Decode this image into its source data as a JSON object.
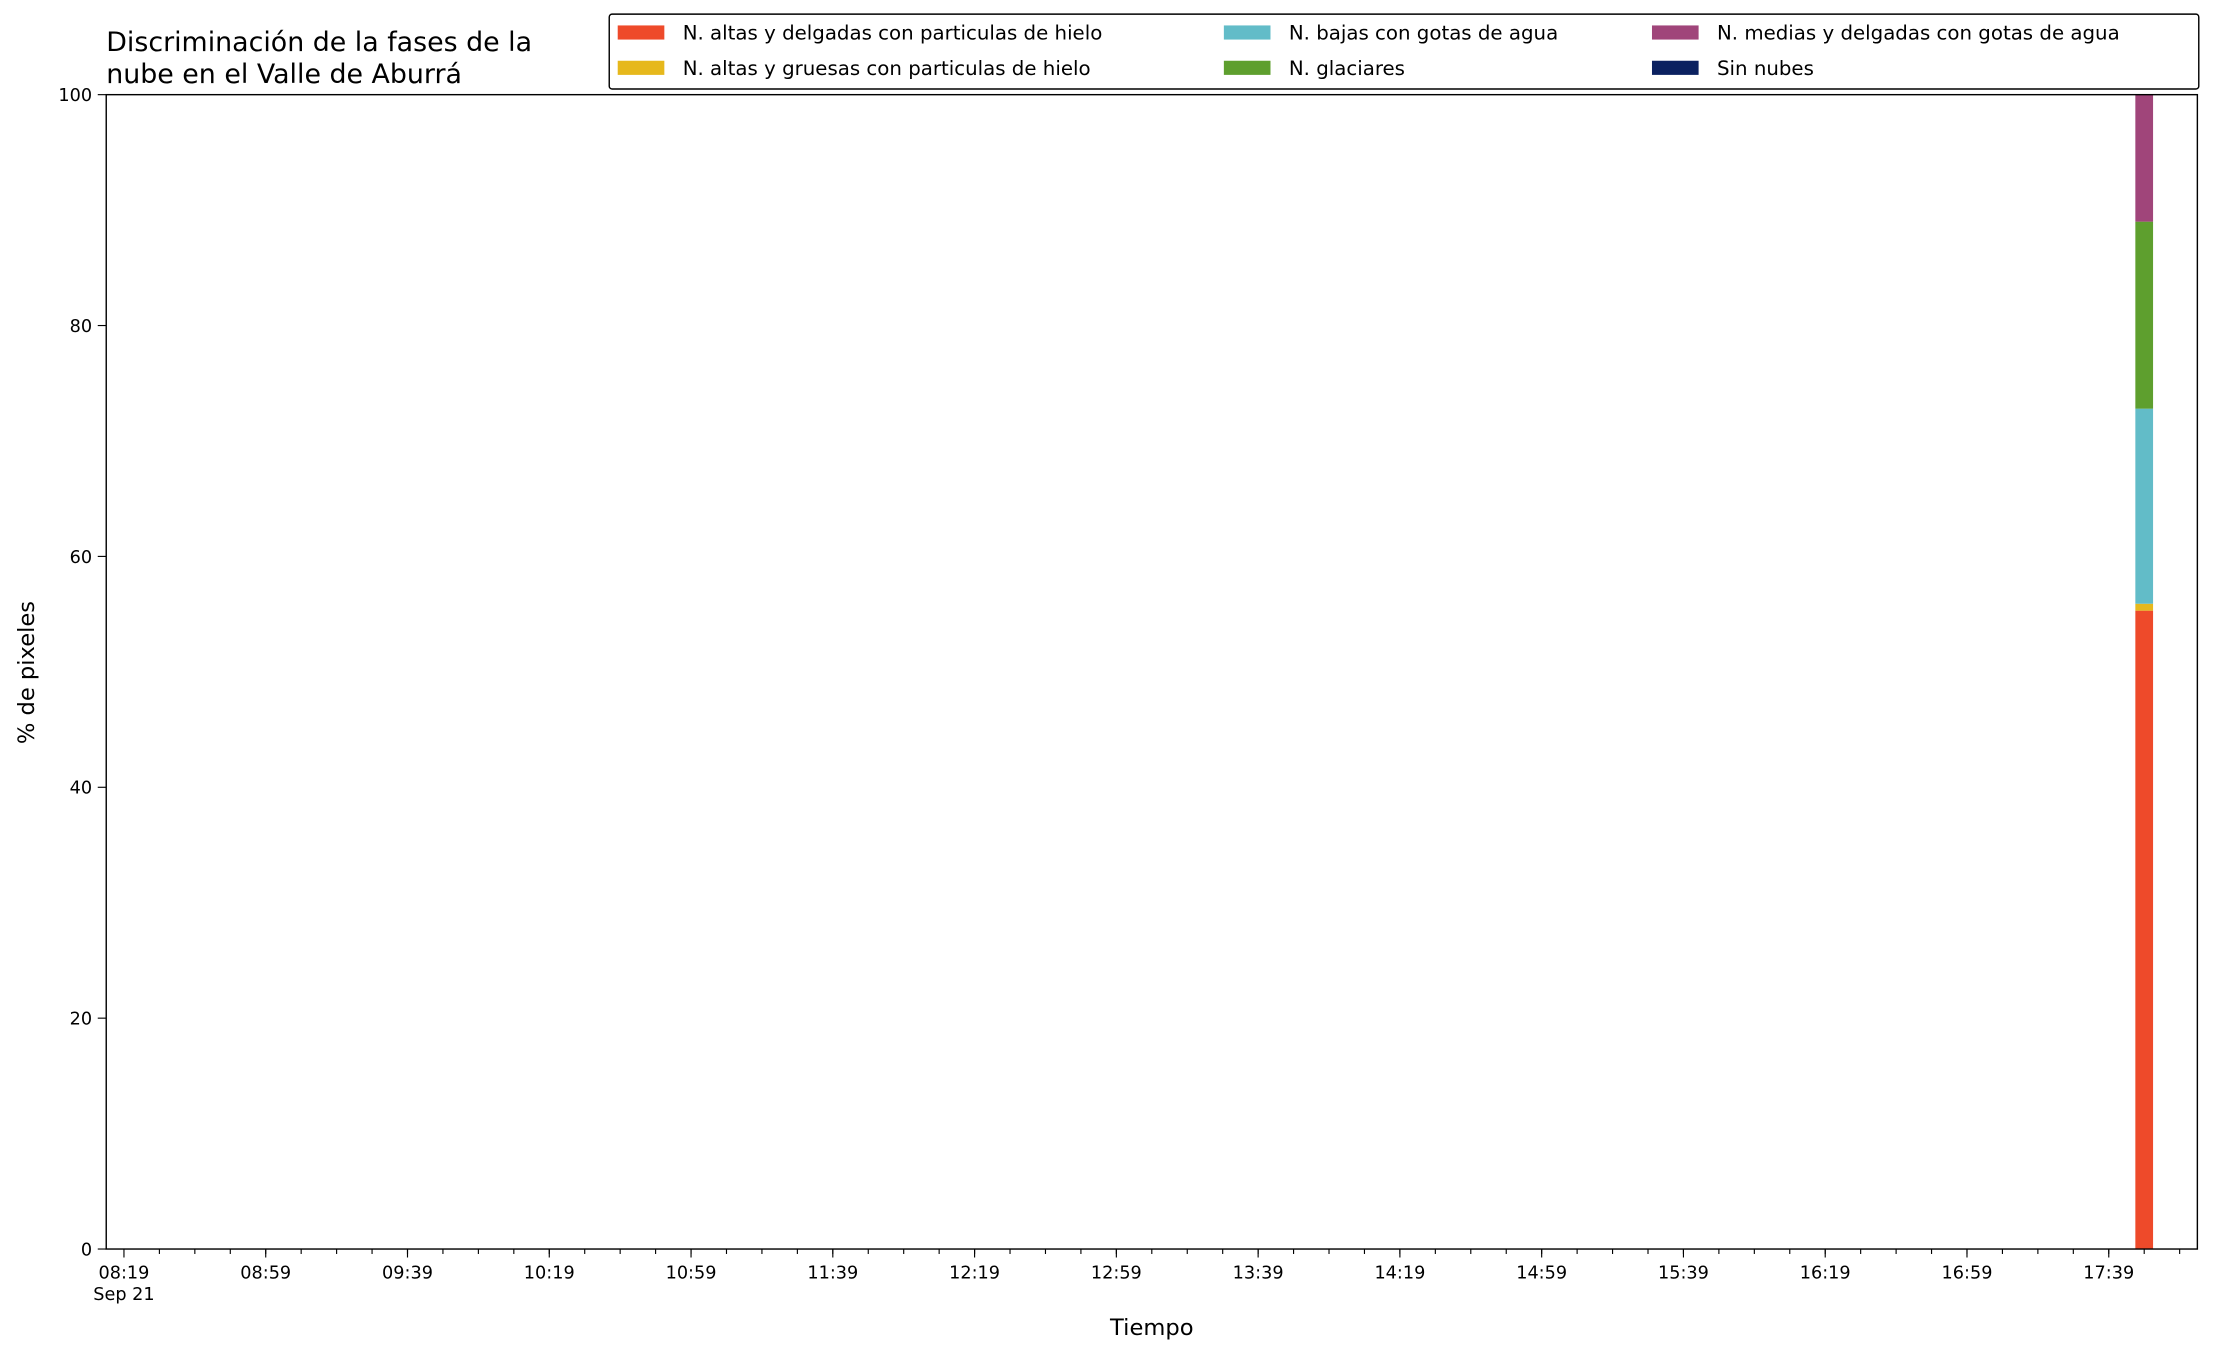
{
  "chart_data": {
    "type": "stacked_bar",
    "title": "Discriminación de la fases de la\nnube en el Valle de Aburrá",
    "xlabel": "Tiempo",
    "ylabel": "% de pixeles",
    "x": [
      "17:49"
    ],
    "series": [
      {
        "name": "N. altas y delgadas con particulas de hielo",
        "color": "#ee4a2a",
        "values": [
          55.3
        ]
      },
      {
        "name": "N. altas y gruesas con particulas de hielo",
        "color": "#e6b81c",
        "values": [
          0.6
        ]
      },
      {
        "name": "N. bajas con gotas de agua",
        "color": "#62bcc8",
        "values": [
          16.9
        ]
      },
      {
        "name": "N. glaciares",
        "color": "#5e9f2e",
        "values": [
          16.2
        ]
      },
      {
        "name": "N. medias y delgadas con gotas de agua",
        "color": "#a0457a",
        "values": [
          11.0
        ]
      },
      {
        "name": "Sin nubes",
        "color": "#0b2160",
        "values": [
          0
        ]
      }
    ],
    "xlim": [
      "08:14",
      "18:04"
    ],
    "xticks": [
      {
        "value": "08:19",
        "label": "08:19\nSep 21"
      },
      "08:59",
      "09:39",
      "10:19",
      "10:59",
      "11:39",
      "12:19",
      "12:59",
      "13:39",
      "14:19",
      "14:59",
      "15:39",
      "16:19",
      "16:59",
      "17:39"
    ],
    "ylim": [
      0,
      100
    ],
    "yticks": [
      0,
      20,
      40,
      60,
      80,
      100
    ],
    "grid": false,
    "legend": "upper right"
  }
}
